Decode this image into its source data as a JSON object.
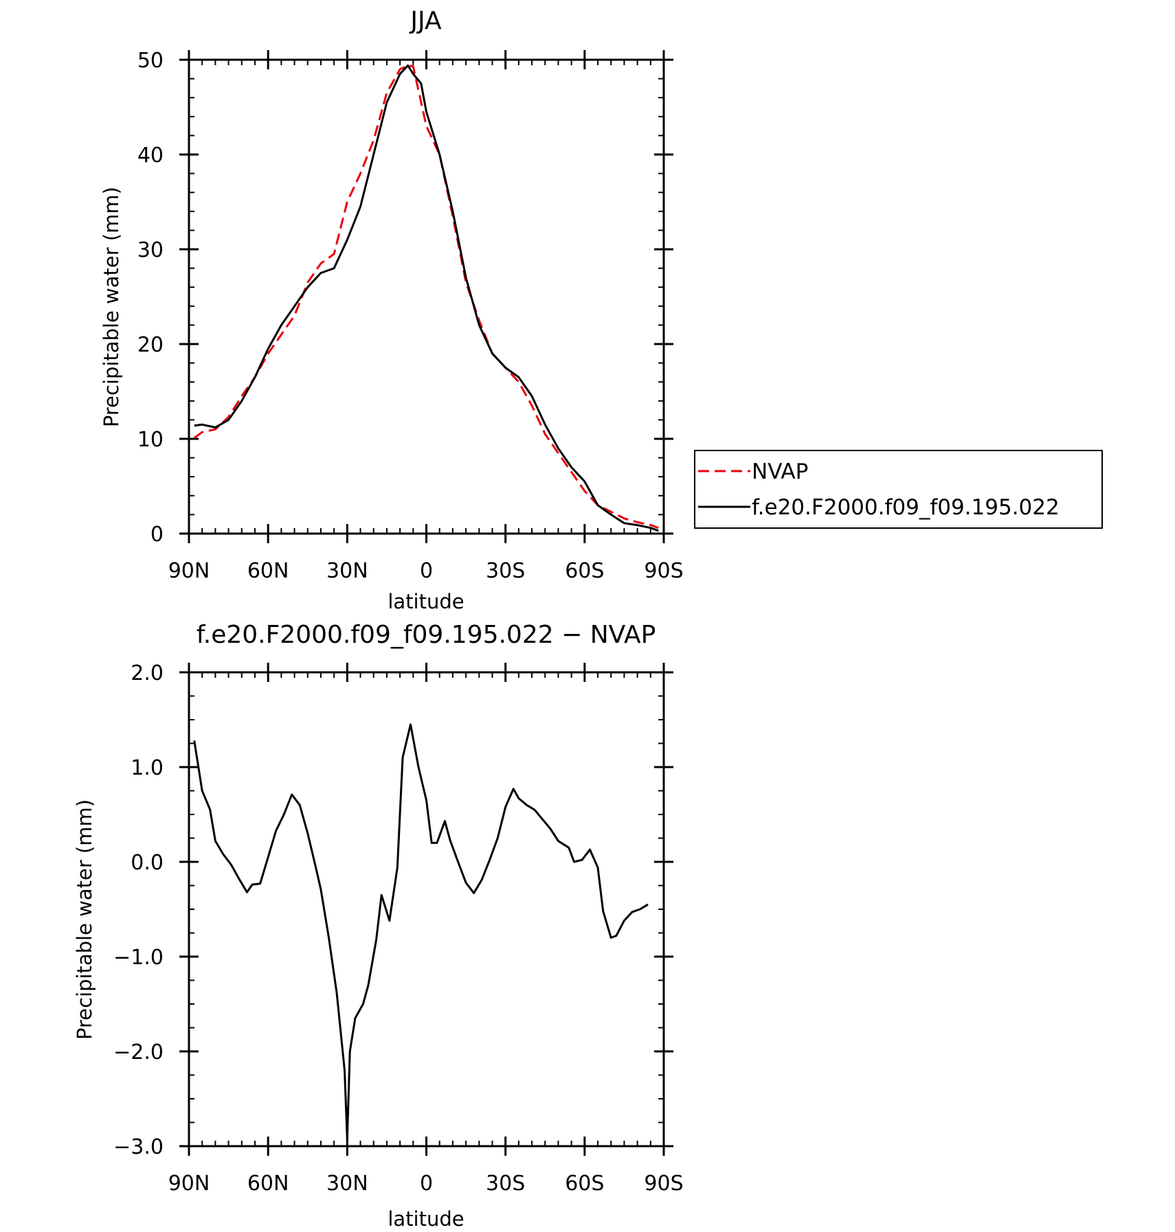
{
  "chart_data": [
    {
      "type": "line",
      "title": "JJA",
      "xlabel": "latitude",
      "ylabel": "Precipitable water (mm)",
      "xlim": [
        90,
        -90
      ],
      "ylim": [
        0,
        50
      ],
      "x_ticks": [
        "90N",
        "60N",
        "30N",
        "0",
        "30S",
        "60S",
        "90S"
      ],
      "x_tick_values": [
        90,
        60,
        30,
        0,
        -30,
        -60,
        -90
      ],
      "y_ticks": [
        "0",
        "10",
        "20",
        "30",
        "40",
        "50"
      ],
      "y_tick_values": [
        0,
        10,
        20,
        30,
        40,
        50
      ],
      "grid": false,
      "legend_position": "right, outside plot",
      "series": [
        {
          "name": "NVAP",
          "color": "#e8000b",
          "dash": "dashed",
          "x": [
            88,
            85,
            80,
            75,
            70,
            65,
            60,
            55,
            50,
            45,
            40,
            35,
            30,
            25,
            20,
            15,
            10,
            7,
            5,
            0,
            -5,
            -10,
            -15,
            -20,
            -25,
            -30,
            -35,
            -40,
            -45,
            -50,
            -55,
            -60,
            -65,
            -70,
            -75,
            -80,
            -85,
            -88
          ],
          "y": [
            10.1,
            10.7,
            11.0,
            12.3,
            14.5,
            16.5,
            19.0,
            21.0,
            23.0,
            26.5,
            28.5,
            29.5,
            35.0,
            38.0,
            41.5,
            46.5,
            49.0,
            49.4,
            49.3,
            43.0,
            40.0,
            33.5,
            26.5,
            22.5,
            19.0,
            17.5,
            16.0,
            13.5,
            10.5,
            8.5,
            6.5,
            4.5,
            3.0,
            2.3,
            1.6,
            1.2,
            0.9,
            0.6
          ]
        },
        {
          "name": "f.e20.F2000.f09_f09.195.022",
          "color": "#000000",
          "dash": "solid",
          "x": [
            88,
            85,
            80,
            75,
            70,
            65,
            60,
            55,
            50,
            45,
            40,
            35,
            30,
            25,
            20,
            15,
            10,
            7,
            5,
            2,
            0,
            -5,
            -10,
            -15,
            -20,
            -25,
            -30,
            -35,
            -40,
            -45,
            -50,
            -55,
            -60,
            -65,
            -70,
            -75,
            -80,
            -85,
            -88
          ],
          "y": [
            11.4,
            11.5,
            11.2,
            12.0,
            14.0,
            16.5,
            19.5,
            22.0,
            24.0,
            26.0,
            27.5,
            28.0,
            31.0,
            34.5,
            40.0,
            45.5,
            48.5,
            49.4,
            48.5,
            47.5,
            44.5,
            40.0,
            34.0,
            27.0,
            22.0,
            19.0,
            17.5,
            16.5,
            14.5,
            11.5,
            9.0,
            7.0,
            5.5,
            3.0,
            2.0,
            1.1,
            0.9,
            0.6,
            0.3
          ]
        }
      ]
    },
    {
      "type": "line",
      "title": "f.e20.F2000.f09_f09.195.022 − NVAP",
      "xlabel": "latitude",
      "ylabel": "Precipitable water (mm)",
      "xlim": [
        90,
        -90
      ],
      "ylim": [
        -3.0,
        2.0
      ],
      "x_ticks": [
        "90N",
        "60N",
        "30N",
        "0",
        "30S",
        "60S",
        "90S"
      ],
      "x_tick_values": [
        90,
        60,
        30,
        0,
        -30,
        -60,
        -90
      ],
      "y_ticks": [
        "−3.0",
        "−2.0",
        "−1.0",
        "0.0",
        "1.0",
        "2.0"
      ],
      "y_tick_values": [
        -3.0,
        -2.0,
        -1.0,
        0.0,
        1.0,
        2.0
      ],
      "grid": false,
      "series": [
        {
          "color": "#000000",
          "dash": "solid",
          "x": [
            88,
            85,
            82,
            80,
            77,
            74,
            71,
            68,
            66,
            63,
            60,
            57,
            54,
            51,
            48,
            45,
            42,
            40,
            37,
            34,
            31,
            30,
            29,
            27,
            24,
            22,
            19,
            17,
            14,
            11,
            9,
            6,
            3,
            0,
            -2,
            -4,
            -7,
            -9,
            -12,
            -15,
            -18,
            -21,
            -24,
            -27,
            -30,
            -33,
            -35,
            -38,
            -41,
            -44,
            -47,
            -50,
            -54,
            -56,
            -59,
            -62,
            -65,
            -67,
            -70,
            -72,
            -75,
            -78,
            -81,
            -84
          ],
          "y": [
            1.28,
            0.75,
            0.55,
            0.22,
            0.08,
            -0.03,
            -0.18,
            -0.32,
            -0.24,
            -0.23,
            0.05,
            0.33,
            0.5,
            0.71,
            0.6,
            0.3,
            -0.05,
            -0.29,
            -0.8,
            -1.38,
            -2.2,
            -2.93,
            -2.0,
            -1.65,
            -1.5,
            -1.3,
            -0.82,
            -0.35,
            -0.62,
            -0.06,
            1.1,
            1.45,
            1.0,
            0.65,
            0.2,
            0.2,
            0.43,
            0.23,
            0.0,
            -0.22,
            -0.33,
            -0.19,
            0.02,
            0.25,
            0.58,
            0.77,
            0.67,
            0.6,
            0.55,
            0.45,
            0.35,
            0.22,
            0.15,
            0.0,
            0.02,
            0.13,
            -0.06,
            -0.52,
            -0.8,
            -0.78,
            -0.62,
            -0.53,
            -0.5,
            -0.45
          ]
        }
      ]
    }
  ]
}
